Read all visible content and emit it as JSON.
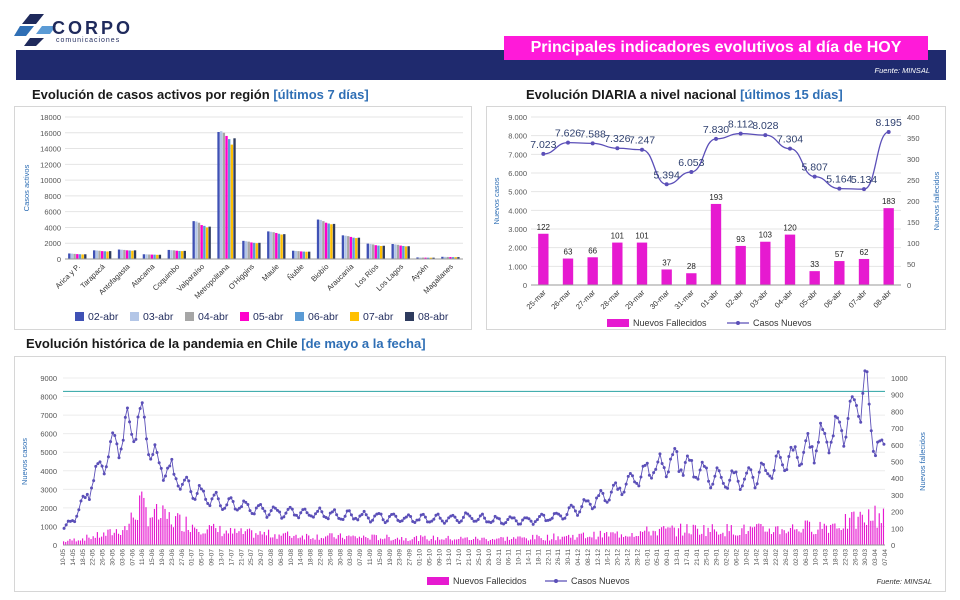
{
  "header": {
    "brand": "CORPO",
    "brand_sub": "comunicaciones",
    "headline": "Principales indicadores evolutivos al día de HOY",
    "source": "Fuente: MINSAL"
  },
  "colors": {
    "band": "#1f2a6e",
    "magenta": "#e61ad0",
    "line": "#5b4fb8",
    "highlight": "#2f6fb5"
  },
  "chart_data": [
    {
      "type": "bar",
      "title": "Evolución de casos activos por región",
      "title_highlight": "[últimos 7 días]",
      "ylabel": "Casos activos",
      "ylim": [
        0,
        18000
      ],
      "yticks": [
        "0",
        "2000",
        "4000",
        "6000",
        "8000",
        "10000",
        "12000",
        "14000",
        "16000",
        "18000"
      ],
      "categories": [
        "Arica y P.",
        "Tarapacá",
        "Antofagasta",
        "Atacama",
        "Coquimbo",
        "Valparaíso",
        "Metropolitana",
        "O'Higgins",
        "Maule",
        "Ñuble",
        "Biobío",
        "Araucanía",
        "Los Ríos",
        "Los Lagos",
        "Aysén",
        "Magallanes"
      ],
      "series": [
        {
          "name": "02-abr",
          "color": "#3f51b5",
          "values": [
            700,
            1100,
            1200,
            600,
            1150,
            4800,
            16100,
            2300,
            3500,
            1050,
            5000,
            3000,
            1950,
            1900,
            200,
            280
          ]
        },
        {
          "name": "03-abr",
          "color": "#b3c6e7",
          "values": [
            680,
            1080,
            1180,
            590,
            1120,
            4750,
            16200,
            2250,
            3450,
            1020,
            4950,
            2950,
            1900,
            1850,
            190,
            270
          ]
        },
        {
          "name": "04-abr",
          "color": "#a6a6a6",
          "values": [
            650,
            1050,
            1150,
            570,
            1100,
            4600,
            16000,
            2200,
            3400,
            1000,
            4800,
            2900,
            1850,
            1800,
            185,
            260
          ]
        },
        {
          "name": "05-abr",
          "color": "#ff00cc",
          "values": [
            620,
            1000,
            1100,
            560,
            1050,
            4300,
            15600,
            2100,
            3300,
            960,
            4600,
            2800,
            1750,
            1700,
            175,
            250
          ]
        },
        {
          "name": "06-abr",
          "color": "#5b9bd5",
          "values": [
            600,
            980,
            1080,
            550,
            1020,
            4200,
            15200,
            2050,
            3200,
            940,
            4500,
            2700,
            1700,
            1650,
            170,
            240
          ]
        },
        {
          "name": "07-abr",
          "color": "#ffc000",
          "values": [
            580,
            950,
            1050,
            530,
            1000,
            4000,
            14500,
            2000,
            3100,
            920,
            4400,
            2650,
            1650,
            1600,
            165,
            235
          ]
        },
        {
          "name": "08-abr",
          "color": "#2e3b5e",
          "values": [
            600,
            1000,
            1100,
            540,
            1030,
            4100,
            15300,
            2050,
            3150,
            930,
            4450,
            2700,
            1680,
            1620,
            168,
            238
          ]
        }
      ]
    },
    {
      "type": "bar+line",
      "title": "Evolución DIARIA  a nivel nacional",
      "title_highlight": "[últimos 15 días]",
      "ylabel_left": "Nuevos casos",
      "ylabel_right": "Nuevos fallecidos",
      "ylim_left": [
        0,
        9000
      ],
      "ylim_right": [
        0,
        400
      ],
      "yticks_left": [
        "0",
        "1.000",
        "2.000",
        "3.000",
        "4.000",
        "5.000",
        "6.000",
        "7.000",
        "8.000",
        "9.000"
      ],
      "yticks_right": [
        "0",
        "50",
        "100",
        "150",
        "200",
        "250",
        "300",
        "350",
        "400"
      ],
      "categories": [
        "25-mar",
        "26-mar",
        "27-mar",
        "28-mar",
        "29-mar",
        "30-mar",
        "31-mar",
        "01-abr",
        "02-abr",
        "03-abr",
        "04-abr",
        "05-abr",
        "06-abr",
        "07-abr",
        "08-abr"
      ],
      "deaths": [
        122,
        63,
        66,
        101,
        101,
        37,
        28,
        193,
        93,
        103,
        120,
        33,
        57,
        62,
        183
      ],
      "deaths_labels": [
        "122",
        "63",
        "66",
        "101",
        "101",
        "37",
        "28",
        "193",
        "93",
        "103",
        "120",
        "33",
        "57",
        "62",
        "183"
      ],
      "cases": [
        7023,
        7626,
        7588,
        7326,
        7247,
        5394,
        6053,
        7830,
        8112,
        8028,
        7304,
        5807,
        5164,
        5134,
        8195
      ],
      "cases_labels": [
        "7.023",
        "7.626",
        "7.588",
        "7.326",
        "7.247",
        "5.394",
        "6.053",
        "7.830",
        "8.112",
        "8.028",
        "7.304",
        "5.807",
        "5.164",
        "5.134",
        "8.195"
      ],
      "legend": [
        "Nuevos Fallecidos",
        "Casos Nuevos"
      ]
    },
    {
      "type": "bar+line",
      "title": "Evolución histórica de la pandemia en Chile",
      "title_highlight": "[de mayo a la fecha]",
      "ylabel_left": "Nuevos casos",
      "ylabel_right": "Nuevos fallecidos",
      "ylim_left": [
        0,
        9000
      ],
      "ylim_right": [
        0,
        1000
      ],
      "yticks_left": [
        "0",
        "1000",
        "2000",
        "3000",
        "4000",
        "5000",
        "6000",
        "7000",
        "8000",
        "9000"
      ],
      "yticks_right": [
        "0",
        "100",
        "200",
        "300",
        "400",
        "500",
        "600",
        "700",
        "800",
        "900",
        "1000"
      ],
      "reference_line_right": 920,
      "x_start": "10-05",
      "x_end": "07-04",
      "legend": [
        "Nuevos Fallecidos",
        "Casos Nuevos"
      ],
      "x_labels": [
        "10-05",
        "14-05",
        "18-05",
        "22-05",
        "26-05",
        "30-05",
        "03-06",
        "07-06",
        "11-06",
        "15-06",
        "19-06",
        "23-06",
        "27-06",
        "01-07",
        "05-07",
        "09-07",
        "13-07",
        "17-07",
        "21-07",
        "25-07",
        "29-07",
        "02-08",
        "06-08",
        "10-08",
        "14-08",
        "18-08",
        "22-08",
        "26-08",
        "30-08",
        "03-09",
        "07-09",
        "11-09",
        "15-09",
        "19-09",
        "23-09",
        "27-09",
        "01-10",
        "05-10",
        "09-10",
        "13-10",
        "17-10",
        "21-10",
        "25-10",
        "29-10",
        "02-11",
        "06-11",
        "10-11",
        "14-11",
        "18-11",
        "22-11",
        "26-11",
        "30-11",
        "04-12",
        "08-12",
        "12-12",
        "16-12",
        "20-12",
        "24-12",
        "28-12",
        "01-01",
        "05-01",
        "09-01",
        "13-01",
        "17-01",
        "21-01",
        "25-01",
        "29-01",
        "02-02",
        "06-02",
        "10-02",
        "14-02",
        "18-02",
        "22-02",
        "26-02",
        "02-03",
        "06-03",
        "10-03",
        "14-03",
        "18-03",
        "22-03",
        "26-03",
        "30-03",
        "03-04",
        "07-04"
      ],
      "anchors_cases": [
        [
          0,
          900
        ],
        [
          5,
          1500
        ],
        [
          10,
          2500
        ],
        [
          18,
          4500
        ],
        [
          24,
          5500
        ],
        [
          30,
          6200
        ],
        [
          36,
          6800
        ],
        [
          40,
          5600
        ],
        [
          44,
          4500
        ],
        [
          48,
          4200
        ],
        [
          52,
          3800
        ],
        [
          58,
          3200
        ],
        [
          64,
          2800
        ],
        [
          70,
          2500
        ],
        [
          80,
          2200
        ],
        [
          90,
          1900
        ],
        [
          100,
          1800
        ],
        [
          110,
          1750
        ],
        [
          120,
          1700
        ],
        [
          130,
          1600
        ],
        [
          140,
          1550
        ],
        [
          150,
          1500
        ],
        [
          160,
          1450
        ],
        [
          170,
          1400
        ],
        [
          180,
          1450
        ],
        [
          190,
          1500
        ],
        [
          200,
          1400
        ],
        [
          210,
          1300
        ],
        [
          220,
          1350
        ],
        [
          230,
          1500
        ],
        [
          240,
          1800
        ],
        [
          250,
          2300
        ],
        [
          260,
          2800
        ],
        [
          270,
          3700
        ],
        [
          280,
          4200
        ],
        [
          290,
          4500
        ],
        [
          300,
          4000
        ],
        [
          310,
          3600
        ],
        [
          320,
          3500
        ],
        [
          330,
          3900
        ],
        [
          340,
          4400
        ],
        [
          350,
          5000
        ],
        [
          360,
          5800
        ],
        [
          366,
          6200
        ],
        [
          372,
          7000
        ],
        [
          376,
          7800
        ],
        [
          380,
          8195
        ],
        [
          384,
          5400
        ],
        [
          386,
          5100
        ],
        [
          388,
          5134
        ]
      ],
      "anchors_deaths": [
        [
          0,
          20
        ],
        [
          10,
          40
        ],
        [
          20,
          60
        ],
        [
          30,
          100
        ],
        [
          36,
          230
        ],
        [
          40,
          180
        ],
        [
          50,
          150
        ],
        [
          60,
          120
        ],
        [
          70,
          90
        ],
        [
          80,
          70
        ],
        [
          100,
          60
        ],
        [
          120,
          50
        ],
        [
          140,
          45
        ],
        [
          160,
          40
        ],
        [
          180,
          38
        ],
        [
          200,
          35
        ],
        [
          220,
          40
        ],
        [
          240,
          50
        ],
        [
          260,
          60
        ],
        [
          280,
          80
        ],
        [
          300,
          90
        ],
        [
          320,
          85
        ],
        [
          340,
          90
        ],
        [
          360,
          110
        ],
        [
          372,
          130
        ],
        [
          380,
          150
        ],
        [
          388,
          183
        ]
      ]
    }
  ]
}
